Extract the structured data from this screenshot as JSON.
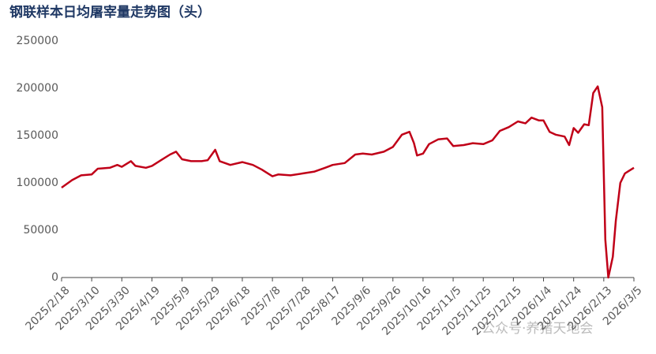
{
  "chart_data": {
    "type": "line",
    "title": "钢联样本日均屠宰量走势图（头）",
    "annotation": "公众号·养猪天地会",
    "x": [
      "2025/2/18",
      "2025/2/25",
      "2025/3/3",
      "2025/3/10",
      "2025/3/14",
      "2025/3/22",
      "2025/3/27",
      "2025/3/30",
      "2025/4/5",
      "2025/4/8",
      "2025/4/15",
      "2025/4/19",
      "2025/4/25",
      "2025/5/1",
      "2025/5/5",
      "2025/5/9",
      "2025/5/15",
      "2025/5/22",
      "2025/5/26",
      "2025/5/31",
      "2025/6/3",
      "2025/6/10",
      "2025/6/18",
      "2025/6/25",
      "2025/7/1",
      "2025/7/4",
      "2025/7/8",
      "2025/7/12",
      "2025/7/20",
      "2025/7/28",
      "2025/8/5",
      "2025/8/12",
      "2025/8/17",
      "2025/8/25",
      "2025/9/1",
      "2025/9/6",
      "2025/9/12",
      "2025/9/20",
      "2025/9/26",
      "2025/10/2",
      "2025/10/7",
      "2025/10/10",
      "2025/10/12",
      "2025/10/16",
      "2025/10/20",
      "2025/10/26",
      "2025/11/1",
      "2025/11/5",
      "2025/11/12",
      "2025/11/18",
      "2025/11/25",
      "2025/12/1",
      "2025/12/6",
      "2025/12/12",
      "2025/12/18",
      "2025/12/23",
      "2025/12/27",
      "2026/1/1",
      "2026/1/4",
      "2026/1/8",
      "2026/1/12",
      "2026/1/18",
      "2026/1/21",
      "2026/1/24",
      "2026/1/27",
      "2026/1/31",
      "2026/2/3",
      "2026/2/6",
      "2026/2/9",
      "2026/2/12",
      "2026/2/14",
      "2026/2/16",
      "2026/2/19",
      "2026/2/21",
      "2026/2/24",
      "2026/2/27",
      "2026/3/1",
      "2026/3/5"
    ],
    "series": [
      {
        "name": "日均屠宰量",
        "color": "#c00018",
        "values": [
          95000,
          103000,
          108000,
          109000,
          115000,
          116000,
          119000,
          117000,
          123000,
          118000,
          116000,
          118000,
          124000,
          130000,
          133000,
          125000,
          123000,
          123000,
          124000,
          135000,
          123000,
          119000,
          122000,
          119000,
          114000,
          111000,
          107000,
          109000,
          108000,
          110000,
          112000,
          116000,
          119000,
          121000,
          130000,
          131000,
          130000,
          133000,
          138000,
          151000,
          154000,
          142000,
          129000,
          131000,
          141000,
          146000,
          147000,
          139000,
          140000,
          142000,
          141000,
          145000,
          155000,
          159000,
          165000,
          163000,
          169000,
          166000,
          166000,
          154000,
          151000,
          149000,
          140000,
          158000,
          153000,
          162000,
          161000,
          195000,
          202000,
          180000,
          40000,
          0,
          22000,
          60000,
          100000,
          110000,
          112000,
          116000
        ]
      }
    ],
    "xlim": [
      "2025/2/18",
      "2026/3/5"
    ],
    "xticks": [
      "2025/2/18",
      "2025/3/10",
      "2025/3/30",
      "2025/4/19",
      "2025/5/9",
      "2025/5/29",
      "2025/6/18",
      "2025/7/8",
      "2025/7/28",
      "2025/8/17",
      "2025/9/6",
      "2025/9/26",
      "2025/10/16",
      "2025/11/5",
      "2025/11/25",
      "2025/12/15",
      "2026/1/4",
      "2026/1/24",
      "2026/2/13",
      "2026/3/5"
    ],
    "ylim": [
      0,
      250000
    ],
    "yticks": [
      0,
      50000,
      100000,
      150000,
      200000,
      250000
    ],
    "grid": false
  }
}
